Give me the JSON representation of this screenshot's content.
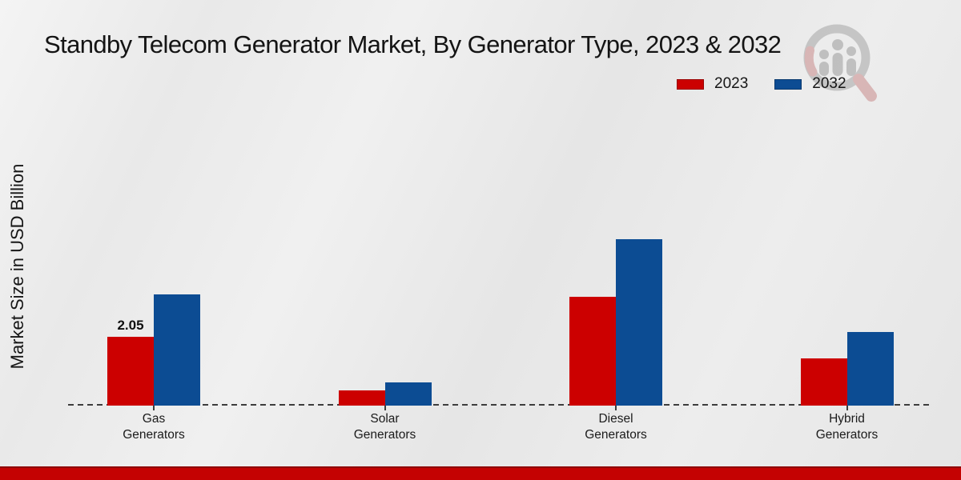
{
  "chart_data": {
    "type": "bar",
    "title": "Standby Telecom Generator Market, By Generator Type, 2023 & 2032",
    "ylabel": "Market Size in USD Billion",
    "xlabel": "",
    "categories": [
      "Gas Generators",
      "Solar Generators",
      "Diesel Generators",
      "Hybrid Generators"
    ],
    "series": [
      {
        "name": "2023",
        "color": "#cc0000",
        "values": [
          2.05,
          0.45,
          3.25,
          1.4
        ]
      },
      {
        "name": "2032",
        "color": "#0c4c93",
        "values": [
          3.3,
          0.7,
          4.95,
          2.2
        ]
      }
    ],
    "bar_labels": [
      {
        "series_index": 0,
        "category_index": 0,
        "text": "2.05"
      }
    ],
    "ylim": [
      0,
      5.5
    ],
    "grid": false,
    "legend_position": "top-right",
    "baseline_style": "dashed"
  },
  "branding": {
    "watermark_icon": "magnifier-people-chart-logo",
    "bottom_band_color": "#c40202",
    "accent_red": "#cc0000",
    "accent_blue": "#0c4c93"
  }
}
